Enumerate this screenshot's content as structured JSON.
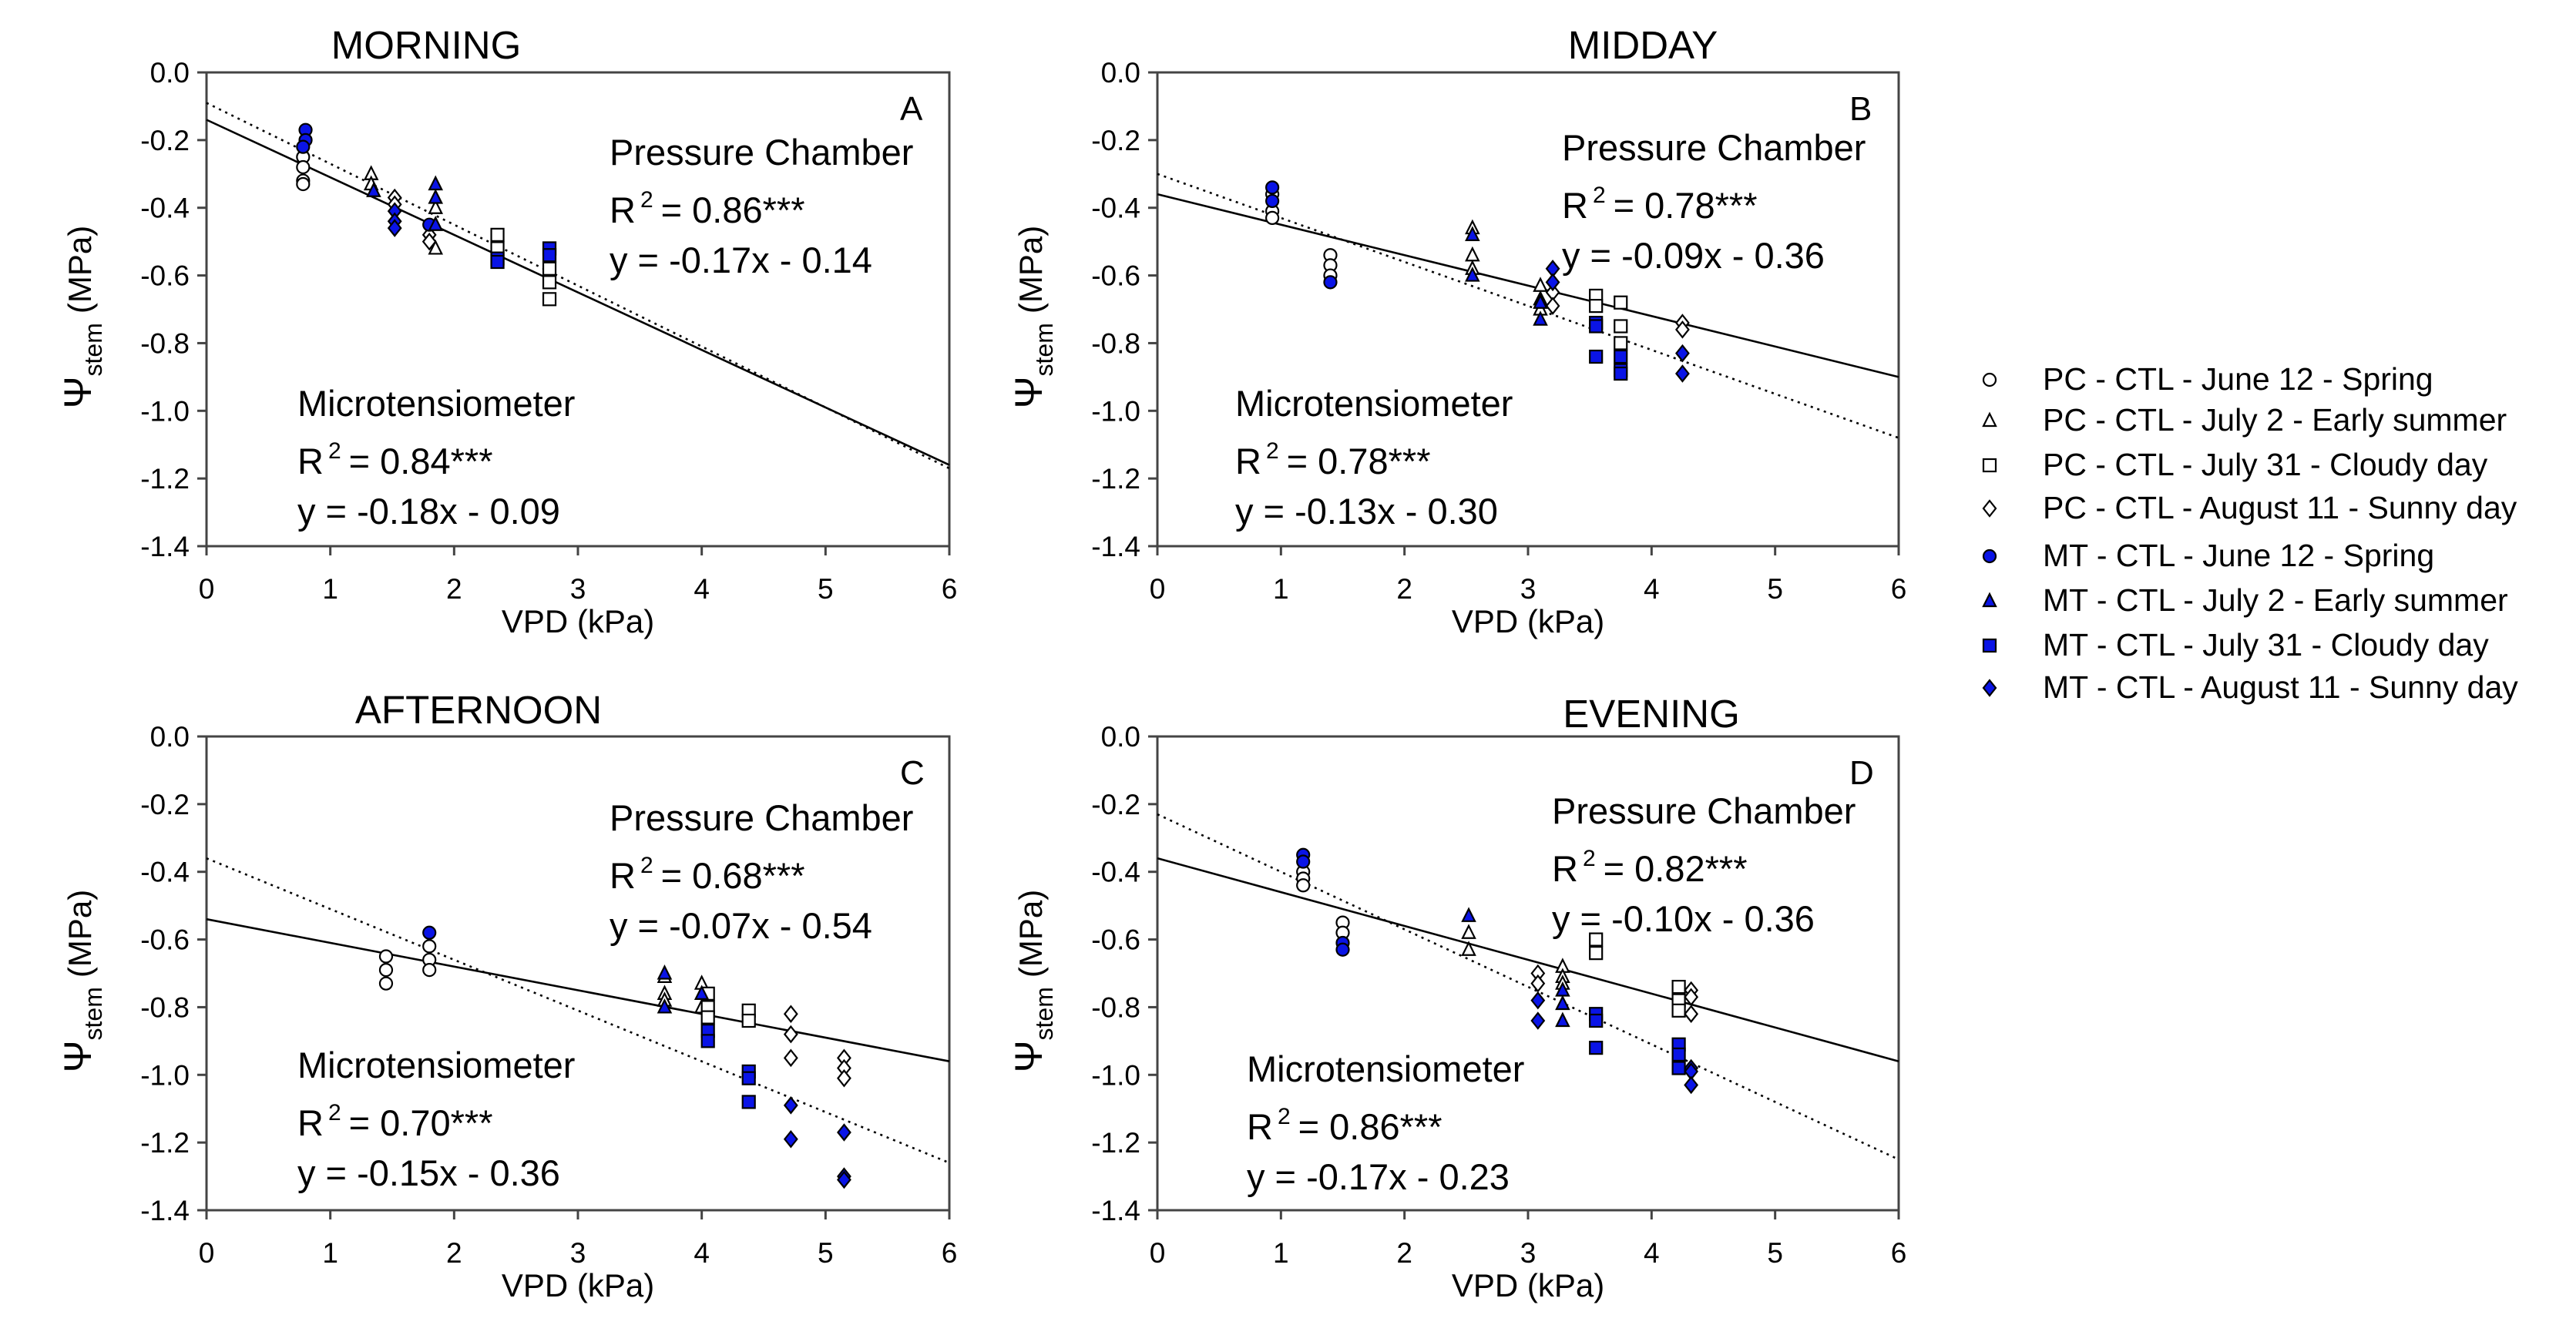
{
  "colors": {
    "mt_fill": "#0a14e6",
    "axis": "#444444",
    "pc_fill": "#ffffff",
    "marker_stroke": "#000000"
  },
  "legend": [
    {
      "label": "PC - CTL - June 12 - Spring",
      "marker": "circle",
      "filled": false
    },
    {
      "label": "PC - CTL - July 2 - Early summer",
      "marker": "triangle",
      "filled": false
    },
    {
      "label": "PC - CTL - July 31 - Cloudy day",
      "marker": "square",
      "filled": false
    },
    {
      "label": "PC - CTL - August 11 - Sunny day",
      "marker": "diamond",
      "filled": false
    },
    {
      "label": "MT - CTL - June 12 - Spring",
      "marker": "circle",
      "filled": true
    },
    {
      "label": "MT - CTL - July 2 - Early summer",
      "marker": "triangle",
      "filled": true
    },
    {
      "label": "MT - CTL - July 31 - Cloudy day",
      "marker": "square",
      "filled": true
    },
    {
      "label": "MT - CTL - August 11 - Sunny day",
      "marker": "diamond",
      "filled": true
    }
  ],
  "chart_data": [
    {
      "type": "scatter",
      "title": "MORNING",
      "panel": "A",
      "xlabel": "VPD (kPa)",
      "ylabel_symbol": "Ψ",
      "ylabel_sub": "stem",
      "ylabel_unit": "(MPa)",
      "xlim": [
        0,
        6
      ],
      "ylim": [
        -1.4,
        0
      ],
      "xticks": [
        "0",
        "1",
        "2",
        "3",
        "4",
        "5",
        "6"
      ],
      "yticks": [
        "0.0",
        "-0.2",
        "-0.4",
        "-0.6",
        "-0.8",
        "-1.0",
        "-1.2",
        "-1.4"
      ],
      "grid": false,
      "pc": {
        "label": "Pressure Chamber",
        "r2_label": "R",
        "r2_sup": "2",
        "r2_value": "= 0.86***",
        "equation": "y = -0.17x - 0.14",
        "slope": -0.17,
        "intercept": -0.14,
        "line": "solid"
      },
      "mt": {
        "label": "Microtensiometer",
        "r2_label": "R",
        "r2_sup": "2",
        "r2_value": "= 0.84***",
        "equation": "y = -0.18x - 0.09",
        "slope": -0.18,
        "intercept": -0.09,
        "line": "dotted"
      },
      "series": [
        {
          "legend": 0,
          "points": [
            [
              0.78,
              -0.25
            ],
            [
              0.78,
              -0.28
            ],
            [
              0.78,
              -0.32
            ],
            [
              0.78,
              -0.33
            ]
          ]
        },
        {
          "legend": 1,
          "points": [
            [
              1.33,
              -0.3
            ],
            [
              1.33,
              -0.33
            ],
            [
              1.85,
              -0.4
            ],
            [
              1.85,
              -0.45
            ],
            [
              1.85,
              -0.52
            ]
          ]
        },
        {
          "legend": 2,
          "points": [
            [
              2.35,
              -0.48
            ],
            [
              2.35,
              -0.52
            ],
            [
              2.77,
              -0.58
            ],
            [
              2.77,
              -0.62
            ],
            [
              2.77,
              -0.67
            ]
          ]
        },
        {
          "legend": 3,
          "points": [
            [
              1.52,
              -0.37
            ],
            [
              1.52,
              -0.39
            ],
            [
              1.8,
              -0.48
            ],
            [
              1.8,
              -0.5
            ]
          ]
        },
        {
          "legend": 4,
          "points": [
            [
              0.8,
              -0.17
            ],
            [
              0.8,
              -0.2
            ],
            [
              0.78,
              -0.22
            ],
            [
              1.8,
              -0.45
            ]
          ]
        },
        {
          "legend": 5,
          "points": [
            [
              1.35,
              -0.35
            ],
            [
              1.85,
              -0.33
            ],
            [
              1.85,
              -0.37
            ],
            [
              1.85,
              -0.45
            ]
          ]
        },
        {
          "legend": 6,
          "points": [
            [
              2.35,
              -0.55
            ],
            [
              2.35,
              -0.56
            ],
            [
              2.77,
              -0.52
            ],
            [
              2.77,
              -0.54
            ]
          ]
        },
        {
          "legend": 7,
          "points": [
            [
              1.52,
              -0.41
            ],
            [
              1.52,
              -0.44
            ],
            [
              1.52,
              -0.46
            ]
          ]
        }
      ]
    },
    {
      "type": "scatter",
      "title": "MIDDAY",
      "panel": "B",
      "xlabel": "VPD (kPa)",
      "ylabel_symbol": "Ψ",
      "ylabel_sub": "stem",
      "ylabel_unit": "(MPa)",
      "xlim": [
        0,
        6
      ],
      "ylim": [
        -1.4,
        0
      ],
      "xticks": [
        "0",
        "1",
        "2",
        "3",
        "4",
        "5",
        "6"
      ],
      "yticks": [
        "0.0",
        "-0.2",
        "-0.4",
        "-0.6",
        "-0.8",
        "-1.0",
        "-1.2",
        "-1.4"
      ],
      "grid": false,
      "pc": {
        "label": "Pressure Chamber",
        "r2_label": "R",
        "r2_sup": "2",
        "r2_value": "= 0.78***",
        "equation": "y = -0.09x - 0.36",
        "slope": -0.09,
        "intercept": -0.36,
        "line": "solid"
      },
      "mt": {
        "label": "Microtensiometer",
        "r2_label": "R",
        "r2_sup": "2",
        "r2_value": "= 0.78***",
        "equation": "y = -0.13x - 0.30",
        "slope": -0.13,
        "intercept": -0.3,
        "line": "dotted"
      },
      "series": [
        {
          "legend": 0,
          "points": [
            [
              0.93,
              -0.36
            ],
            [
              0.93,
              -0.41
            ],
            [
              0.93,
              -0.43
            ],
            [
              1.4,
              -0.54
            ],
            [
              1.4,
              -0.57
            ],
            [
              1.4,
              -0.6
            ]
          ]
        },
        {
          "legend": 1,
          "points": [
            [
              2.55,
              -0.46
            ],
            [
              2.55,
              -0.54
            ],
            [
              2.55,
              -0.58
            ],
            [
              3.1,
              -0.63
            ],
            [
              3.1,
              -0.67
            ],
            [
              3.1,
              -0.7
            ]
          ]
        },
        {
          "legend": 2,
          "points": [
            [
              3.55,
              -0.66
            ],
            [
              3.55,
              -0.69
            ],
            [
              3.75,
              -0.68
            ],
            [
              3.75,
              -0.75
            ],
            [
              3.75,
              -0.8
            ]
          ]
        },
        {
          "legend": 3,
          "points": [
            [
              3.2,
              -0.65
            ],
            [
              3.2,
              -0.69
            ],
            [
              4.25,
              -0.74
            ],
            [
              4.25,
              -0.76
            ]
          ]
        },
        {
          "legend": 4,
          "points": [
            [
              0.93,
              -0.34
            ],
            [
              0.93,
              -0.38
            ],
            [
              1.4,
              -0.62
            ]
          ]
        },
        {
          "legend": 5,
          "points": [
            [
              2.55,
              -0.48
            ],
            [
              2.55,
              -0.6
            ],
            [
              3.1,
              -0.68
            ],
            [
              3.1,
              -0.73
            ]
          ]
        },
        {
          "legend": 6,
          "points": [
            [
              3.55,
              -0.74
            ],
            [
              3.55,
              -0.75
            ],
            [
              3.55,
              -0.84
            ],
            [
              3.75,
              -0.84
            ],
            [
              3.75,
              -0.88
            ],
            [
              3.75,
              -0.89
            ]
          ]
        },
        {
          "legend": 7,
          "points": [
            [
              3.2,
              -0.58
            ],
            [
              3.2,
              -0.62
            ],
            [
              4.25,
              -0.83
            ],
            [
              4.25,
              -0.89
            ]
          ]
        }
      ]
    },
    {
      "type": "scatter",
      "title": "AFTERNOON",
      "panel": "C",
      "xlabel": "VPD (kPa)",
      "ylabel_symbol": "Ψ",
      "ylabel_sub": "stem",
      "ylabel_unit": "(MPa)",
      "xlim": [
        0,
        6
      ],
      "ylim": [
        -1.4,
        0
      ],
      "xticks": [
        "0",
        "1",
        "2",
        "3",
        "4",
        "5",
        "6"
      ],
      "yticks": [
        "0.0",
        "-0.2",
        "-0.4",
        "-0.6",
        "-0.8",
        "-1.0",
        "-1.2",
        "-1.4"
      ],
      "grid": false,
      "pc": {
        "label": "Pressure Chamber",
        "r2_label": "R",
        "r2_sup": "2",
        "r2_value": "= 0.68***",
        "equation": "y = -0.07x - 0.54",
        "slope": -0.07,
        "intercept": -0.54,
        "line": "solid"
      },
      "mt": {
        "label": "Microtensiometer",
        "r2_label": "R",
        "r2_sup": "2",
        "r2_value": "= 0.70***",
        "equation": "y = -0.15x - 0.36",
        "slope": -0.15,
        "intercept": -0.36,
        "line": "dotted"
      },
      "series": [
        {
          "legend": 0,
          "points": [
            [
              1.45,
              -0.65
            ],
            [
              1.45,
              -0.69
            ],
            [
              1.45,
              -0.73
            ],
            [
              1.8,
              -0.62
            ],
            [
              1.8,
              -0.66
            ],
            [
              1.8,
              -0.69
            ]
          ]
        },
        {
          "legend": 1,
          "points": [
            [
              3.7,
              -0.71
            ],
            [
              3.7,
              -0.76
            ],
            [
              3.7,
              -0.78
            ],
            [
              4.0,
              -0.73
            ],
            [
              4.0,
              -0.8
            ]
          ]
        },
        {
          "legend": 2,
          "points": [
            [
              4.05,
              -0.76
            ],
            [
              4.05,
              -0.8
            ],
            [
              4.05,
              -0.83
            ],
            [
              4.38,
              -0.81
            ],
            [
              4.38,
              -0.84
            ]
          ]
        },
        {
          "legend": 3,
          "points": [
            [
              4.72,
              -0.82
            ],
            [
              4.72,
              -0.88
            ],
            [
              4.72,
              -0.95
            ],
            [
              5.15,
              -0.95
            ],
            [
              5.15,
              -0.98
            ],
            [
              5.15,
              -1.01
            ]
          ]
        },
        {
          "legend": 4,
          "points": [
            [
              1.8,
              -0.58
            ]
          ]
        },
        {
          "legend": 5,
          "points": [
            [
              3.7,
              -0.7
            ],
            [
              3.7,
              -0.8
            ],
            [
              4.0,
              -0.76
            ]
          ]
        },
        {
          "legend": 6,
          "points": [
            [
              4.05,
              -0.87
            ],
            [
              4.05,
              -0.9
            ],
            [
              4.38,
              -0.99
            ],
            [
              4.38,
              -1.01
            ],
            [
              4.38,
              -1.08
            ]
          ]
        },
        {
          "legend": 7,
          "points": [
            [
              4.72,
              -1.09
            ],
            [
              4.72,
              -1.19
            ],
            [
              5.15,
              -1.17
            ],
            [
              5.15,
              -1.3
            ],
            [
              5.15,
              -1.31
            ]
          ]
        }
      ]
    },
    {
      "type": "scatter",
      "title": "EVENING",
      "panel": "D",
      "xlabel": "VPD (kPa)",
      "ylabel_symbol": "Ψ",
      "ylabel_sub": "stem",
      "ylabel_unit": "(MPa)",
      "xlim": [
        0,
        6
      ],
      "ylim": [
        -1.4,
        0
      ],
      "xticks": [
        "0",
        "1",
        "2",
        "3",
        "4",
        "5",
        "6"
      ],
      "yticks": [
        "0.0",
        "-0.2",
        "-0.4",
        "-0.6",
        "-0.8",
        "-1.0",
        "-1.2",
        "-1.4"
      ],
      "grid": false,
      "pc": {
        "label": "Pressure Chamber",
        "r2_label": "R",
        "r2_sup": "2",
        "r2_value": "= 0.82***",
        "equation": "y = -0.10x - 0.36",
        "slope": -0.1,
        "intercept": -0.36,
        "line": "solid"
      },
      "mt": {
        "label": "Microtensiometer",
        "r2_label": "R",
        "r2_sup": "2",
        "r2_value": "= 0.86***",
        "equation": "y = -0.17x - 0.23",
        "slope": -0.17,
        "intercept": -0.23,
        "line": "dotted"
      },
      "series": [
        {
          "legend": 0,
          "points": [
            [
              1.18,
              -0.4
            ],
            [
              1.18,
              -0.42
            ],
            [
              1.18,
              -0.44
            ],
            [
              1.5,
              -0.55
            ],
            [
              1.5,
              -0.58
            ]
          ]
        },
        {
          "legend": 1,
          "points": [
            [
              2.52,
              -0.58
            ],
            [
              2.52,
              -0.63
            ],
            [
              3.28,
              -0.68
            ],
            [
              3.28,
              -0.71
            ],
            [
              3.28,
              -0.73
            ]
          ]
        },
        {
          "legend": 2,
          "points": [
            [
              3.55,
              -0.6
            ],
            [
              3.55,
              -0.64
            ],
            [
              4.22,
              -0.74
            ],
            [
              4.22,
              -0.78
            ],
            [
              4.22,
              -0.81
            ]
          ]
        },
        {
          "legend": 3,
          "points": [
            [
              3.08,
              -0.7
            ],
            [
              3.08,
              -0.73
            ],
            [
              4.32,
              -0.75
            ],
            [
              4.32,
              -0.77
            ],
            [
              4.32,
              -0.82
            ]
          ]
        },
        {
          "legend": 4,
          "points": [
            [
              1.18,
              -0.35
            ],
            [
              1.18,
              -0.37
            ],
            [
              1.5,
              -0.61
            ],
            [
              1.5,
              -0.63
            ]
          ]
        },
        {
          "legend": 5,
          "points": [
            [
              2.52,
              -0.53
            ],
            [
              3.28,
              -0.75
            ],
            [
              3.28,
              -0.79
            ],
            [
              3.28,
              -0.84
            ]
          ]
        },
        {
          "legend": 6,
          "points": [
            [
              3.55,
              -0.82
            ],
            [
              3.55,
              -0.84
            ],
            [
              3.55,
              -0.92
            ],
            [
              4.22,
              -0.91
            ],
            [
              4.22,
              -0.94
            ],
            [
              4.22,
              -0.98
            ]
          ]
        },
        {
          "legend": 7,
          "points": [
            [
              3.08,
              -0.78
            ],
            [
              3.08,
              -0.84
            ],
            [
              4.32,
              -0.98
            ],
            [
              4.32,
              -0.99
            ],
            [
              4.32,
              -1.03
            ]
          ]
        }
      ]
    }
  ]
}
